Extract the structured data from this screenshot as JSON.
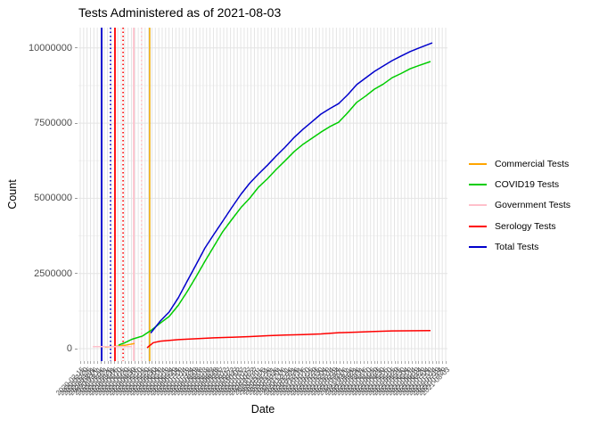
{
  "chart_data": {
    "type": "line",
    "title": "Tests Administered as of 2021-08-03",
    "xlabel": "Date",
    "ylabel": "Count",
    "ylim": [
      0,
      10680000
    ],
    "grid": true,
    "legend_position": "right",
    "background": "#ffffff",
    "grid_major_color": "#e4e4e4",
    "grid_minor_color": "#f2f2f2",
    "tick_label_color": "#4d4d4d",
    "y_tick_values": [
      0,
      2500000,
      5000000,
      7500000,
      10000000
    ],
    "y_tick_labels": [
      "0",
      "2500000",
      "5000000",
      "7500000",
      "10000000"
    ],
    "y_minor_gridlines": [
      1250000,
      3750000,
      6250000,
      8750000
    ],
    "x_tick_labels": [
      "2020-02-15",
      "2020-02-20",
      "2020-02-25",
      "2020-03-01",
      "2020-03-06",
      "2020-03-11",
      "2020-03-16",
      "2020-03-21",
      "2020-03-26",
      "2020-03-31",
      "2020-04-05",
      "2020-04-10",
      "2020-04-15",
      "2020-04-20",
      "2020-04-25",
      "2020-04-30",
      "2020-05-05",
      "2020-05-10",
      "2020-05-15",
      "2020-05-20",
      "2020-05-25",
      "2020-05-30",
      "2020-06-04",
      "2020-06-09",
      "2020-06-14",
      "2020-06-19",
      "2020-06-24",
      "2020-06-29",
      "2020-07-04",
      "2020-07-09",
      "2020-07-14",
      "2020-07-19",
      "2020-07-24",
      "2020-07-29",
      "2020-08-03",
      "2020-08-08",
      "2020-08-13",
      "2020-08-18",
      "2020-08-23",
      "2020-08-28",
      "2020-09-02",
      "2020-09-07",
      "2020-09-12",
      "2020-09-17",
      "2020-09-22",
      "2020-09-27",
      "2020-10-02",
      "2020-10-07",
      "2020-10-12",
      "2020-10-17",
      "2020-10-22",
      "2020-10-27",
      "2020-11-01",
      "2020-11-06",
      "2020-11-11",
      "2020-11-16",
      "2020-11-21",
      "2020-11-26",
      "2020-12-01",
      "2020-12-06",
      "2020-12-11",
      "2020-12-16",
      "2020-12-21",
      "2020-12-26",
      "2020-12-31",
      "2021-01-05",
      "2021-01-10",
      "2021-01-15",
      "2021-01-20",
      "2021-01-25",
      "2021-01-30",
      "2021-02-04",
      "2021-02-09",
      "2021-02-14",
      "2021-02-19",
      "2021-02-24",
      "2021-03-01",
      "2021-03-06",
      "2021-03-11",
      "2021-03-16",
      "2021-03-21",
      "2021-03-26",
      "2021-03-31",
      "2021-04-05",
      "2021-04-10",
      "2021-04-15",
      "2021-04-20",
      "2021-04-25",
      "2021-04-30",
      "2021-05-05",
      "2021-05-10",
      "2021-05-15",
      "2021-05-20",
      "2021-05-25",
      "2021-05-30",
      "2021-06-04",
      "2021-06-09",
      "2021-06-14",
      "2021-06-19",
      "2021-06-24",
      "2021-06-29",
      "2021-07-04",
      "2021-07-09",
      "2021-07-14",
      "2021-07-19",
      "2021-07-24",
      "2021-07-29",
      "2021-08-03"
    ],
    "series": [
      {
        "name": "Commercial Tests",
        "color": "#ffa500",
        "points": [
          [
            0.072,
            50000
          ],
          [
            0.097,
            70000
          ],
          [
            0.121,
            100000
          ],
          [
            0.138,
            140000
          ],
          [
            0.152,
            170000
          ]
        ]
      },
      {
        "name": "COVID19 Tests",
        "color": "#00cc00",
        "points": [
          [
            0.109,
            120000
          ],
          [
            0.126,
            200000
          ],
          [
            0.145,
            310000
          ],
          [
            0.174,
            420000
          ],
          [
            0.198,
            620000
          ],
          [
            0.222,
            850000
          ],
          [
            0.246,
            1070000
          ],
          [
            0.271,
            1450000
          ],
          [
            0.295,
            1900000
          ],
          [
            0.319,
            2400000
          ],
          [
            0.343,
            2910000
          ],
          [
            0.367,
            3400000
          ],
          [
            0.391,
            3890000
          ],
          [
            0.416,
            4300000
          ],
          [
            0.44,
            4690000
          ],
          [
            0.464,
            5000000
          ],
          [
            0.488,
            5370000
          ],
          [
            0.512,
            5650000
          ],
          [
            0.536,
            5960000
          ],
          [
            0.56,
            6250000
          ],
          [
            0.585,
            6560000
          ],
          [
            0.609,
            6800000
          ],
          [
            0.633,
            7000000
          ],
          [
            0.657,
            7200000
          ],
          [
            0.681,
            7380000
          ],
          [
            0.705,
            7530000
          ],
          [
            0.73,
            7850000
          ],
          [
            0.754,
            8190000
          ],
          [
            0.778,
            8400000
          ],
          [
            0.802,
            8630000
          ],
          [
            0.826,
            8800000
          ],
          [
            0.85,
            9010000
          ],
          [
            0.874,
            9150000
          ],
          [
            0.899,
            9310000
          ],
          [
            0.923,
            9420000
          ],
          [
            0.954,
            9550000
          ]
        ]
      },
      {
        "name": "Government Tests",
        "color": "#ffc0cb",
        "points": [
          [
            0.039,
            65000
          ],
          [
            0.145,
            68000
          ]
        ]
      },
      {
        "name": "Serology Tests",
        "color": "#ff0000",
        "points": [
          [
            0.186,
            30000
          ],
          [
            0.203,
            200000
          ],
          [
            0.222,
            250000
          ],
          [
            0.271,
            300000
          ],
          [
            0.319,
            330000
          ],
          [
            0.367,
            360000
          ],
          [
            0.416,
            380000
          ],
          [
            0.464,
            400000
          ],
          [
            0.512,
            430000
          ],
          [
            0.56,
            450000
          ],
          [
            0.609,
            470000
          ],
          [
            0.657,
            490000
          ],
          [
            0.705,
            530000
          ],
          [
            0.754,
            550000
          ],
          [
            0.802,
            570000
          ],
          [
            0.85,
            590000
          ],
          [
            0.954,
            600000
          ]
        ]
      },
      {
        "name": "Total Tests",
        "color": "#0000cc",
        "points": [
          [
            0.196,
            520000
          ],
          [
            0.222,
            920000
          ],
          [
            0.246,
            1220000
          ],
          [
            0.271,
            1700000
          ],
          [
            0.295,
            2250000
          ],
          [
            0.319,
            2800000
          ],
          [
            0.343,
            3350000
          ],
          [
            0.367,
            3800000
          ],
          [
            0.391,
            4240000
          ],
          [
            0.416,
            4700000
          ],
          [
            0.44,
            5130000
          ],
          [
            0.464,
            5500000
          ],
          [
            0.488,
            5810000
          ],
          [
            0.512,
            6100000
          ],
          [
            0.536,
            6410000
          ],
          [
            0.56,
            6700000
          ],
          [
            0.585,
            7030000
          ],
          [
            0.609,
            7300000
          ],
          [
            0.633,
            7550000
          ],
          [
            0.657,
            7800000
          ],
          [
            0.681,
            7980000
          ],
          [
            0.705,
            8150000
          ],
          [
            0.73,
            8450000
          ],
          [
            0.754,
            8780000
          ],
          [
            0.778,
            9000000
          ],
          [
            0.802,
            9220000
          ],
          [
            0.826,
            9400000
          ],
          [
            0.85,
            9580000
          ],
          [
            0.874,
            9730000
          ],
          [
            0.899,
            9880000
          ],
          [
            0.923,
            10000000
          ],
          [
            0.959,
            10170000
          ]
        ]
      }
    ],
    "vertical_lines": [
      {
        "color": "#0000cc",
        "style": "solid",
        "x": 0.063
      },
      {
        "color": "#0000cc",
        "style": "dotted",
        "x": 0.087
      },
      {
        "color": "#ff0000",
        "style": "solid",
        "x": 0.099
      },
      {
        "color": "#ff0000",
        "style": "dotted",
        "x": 0.121
      },
      {
        "color": "#ffc0cb",
        "style": "solid",
        "x": 0.15
      },
      {
        "color": "#ffc0cb",
        "style": "dotted",
        "x": 0.171
      },
      {
        "color": "#eeb422",
        "style": "solid",
        "x": 0.193
      }
    ]
  }
}
